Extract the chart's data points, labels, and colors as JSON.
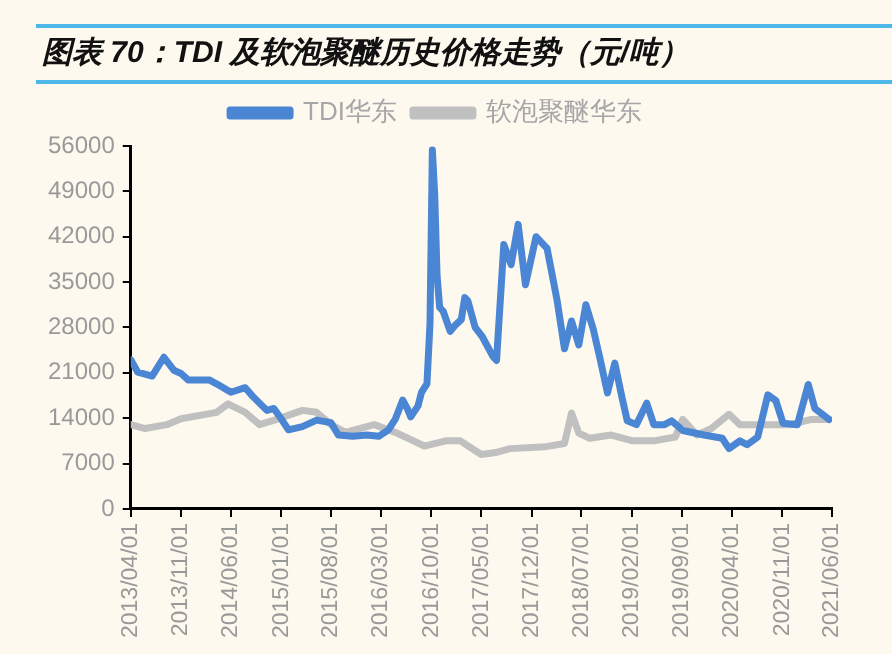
{
  "chart_data": {
    "type": "line",
    "title": "图表 70：TDI 及软泡聚醚历史价格走势（元/吨）",
    "legend": "top",
    "grid": false,
    "marker": "none",
    "line_style": "solid",
    "xlim": [
      "2013-04-01",
      "2021-06-01"
    ],
    "xticks": [
      {
        "value": "2013-04-01",
        "label": "2013/04/01"
      },
      {
        "value": "2013-11-01",
        "label": "2013/11/01"
      },
      {
        "value": "2014-06-01",
        "label": "2014/06/01"
      },
      {
        "value": "2015-01-01",
        "label": "2015/01/01"
      },
      {
        "value": "2015-08-01",
        "label": "2015/08/01"
      },
      {
        "value": "2016-03-01",
        "label": "2016/03/01"
      },
      {
        "value": "2016-10-01",
        "label": "2016/10/01"
      },
      {
        "value": "2017-05-01",
        "label": "2017/05/01"
      },
      {
        "value": "2017-12-01",
        "label": "2017/12/01"
      },
      {
        "value": "2018-07-01",
        "label": "2018/07/01"
      },
      {
        "value": "2019-02-01",
        "label": "2019/02/01"
      },
      {
        "value": "2019-09-01",
        "label": "2019/09/01"
      },
      {
        "value": "2020-04-01",
        "label": "2020/04/01"
      },
      {
        "value": "2020-11-01",
        "label": "2020/11/01"
      },
      {
        "value": "2021-06-01",
        "label": "2021/06/01"
      }
    ],
    "ylim": [
      0,
      56000
    ],
    "yticks": [
      0,
      7000,
      14000,
      21000,
      28000,
      35000,
      42000,
      49000,
      56000
    ],
    "series": [
      {
        "name": "TDI华东",
        "color": "#4a86d4",
        "x": [
          "2013-04-01",
          "2013-05-01",
          "2013-07-01",
          "2013-08-20",
          "2013-10-01",
          "2013-11-01",
          "2013-12-01",
          "2014-03-01",
          "2014-04-01",
          "2014-06-01",
          "2014-08-01",
          "2014-09-01",
          "2014-11-01",
          "2014-12-01",
          "2015-01-01",
          "2015-02-01",
          "2015-04-01",
          "2015-06-01",
          "2015-07-01",
          "2015-08-01",
          "2015-09-01",
          "2015-11-01",
          "2016-01-01",
          "2016-02-20",
          "2016-04-01",
          "2016-05-01",
          "2016-06-01",
          "2016-06-20",
          "2016-07-05",
          "2016-08-05",
          "2016-08-20",
          "2016-09-12",
          "2016-09-25",
          "2016-10-05",
          "2016-10-15",
          "2016-10-25",
          "2016-11-05",
          "2016-11-20",
          "2016-12-20",
          "2017-01-12",
          "2017-02-05",
          "2017-02-20",
          "2017-03-05",
          "2017-04-05",
          "2017-05-05",
          "2017-06-20",
          "2017-07-05",
          "2017-08-05",
          "2017-09-05",
          "2017-10-05",
          "2017-11-05",
          "2017-12-20",
          "2018-02-05",
          "2018-03-20",
          "2018-04-20",
          "2018-05-20",
          "2018-06-20",
          "2018-07-20",
          "2018-08-20",
          "2018-09-20",
          "2018-10-20",
          "2018-11-20",
          "2018-12-20",
          "2019-01-12",
          "2019-02-20",
          "2019-04-05",
          "2019-05-05",
          "2019-06-20",
          "2019-07-20",
          "2019-09-05",
          "2019-12-05",
          "2020-02-20",
          "2020-03-20",
          "2020-05-05",
          "2020-06-05",
          "2020-07-20",
          "2020-09-01",
          "2020-10-05",
          "2020-11-05",
          "2021-01-05",
          "2021-02-20",
          "2021-03-20",
          "2021-05-20"
        ],
        "values": [
          23000,
          21100,
          20500,
          23400,
          21400,
          20900,
          19900,
          19900,
          19300,
          18000,
          18700,
          17400,
          15200,
          15500,
          13900,
          12200,
          12700,
          13700,
          13500,
          13300,
          11400,
          11200,
          11400,
          11200,
          12200,
          13900,
          16800,
          15500,
          14200,
          15900,
          18000,
          19300,
          28600,
          55400,
          48500,
          36000,
          31100,
          30500,
          27400,
          28400,
          29200,
          32600,
          32100,
          28000,
          26600,
          23500,
          22900,
          40800,
          37700,
          43900,
          34600,
          42000,
          40200,
          32100,
          24700,
          29000,
          25300,
          31500,
          27800,
          22900,
          17900,
          22500,
          17300,
          13600,
          13000,
          16300,
          13000,
          13000,
          13600,
          12100,
          11400,
          10900,
          9300,
          10500,
          9900,
          11100,
          17600,
          16700,
          13200,
          13000,
          19200,
          15500,
          13800
        ]
      },
      {
        "name": "软泡聚醚华东",
        "color": "#c0c0c0",
        "x": [
          "2013-04-01",
          "2013-06-01",
          "2013-09-01",
          "2013-11-01",
          "2014-04-01",
          "2014-05-20",
          "2014-08-01",
          "2014-10-01",
          "2014-12-20",
          "2015-04-01",
          "2015-06-01",
          "2015-08-01",
          "2015-10-01",
          "2016-02-01",
          "2016-05-01",
          "2016-09-01",
          "2016-12-01",
          "2017-02-01",
          "2017-05-01",
          "2017-07-01",
          "2017-09-01",
          "2018-02-01",
          "2018-04-20",
          "2018-05-20",
          "2018-06-20",
          "2018-08-05",
          "2018-11-05",
          "2019-02-05",
          "2019-05-05",
          "2019-08-05",
          "2019-09-05",
          "2019-11-05",
          "2020-01-05",
          "2020-03-20",
          "2020-05-05",
          "2020-10-05",
          "2020-12-05",
          "2021-03-05",
          "2021-05-20"
        ],
        "values": [
          13000,
          12400,
          13000,
          13900,
          14900,
          16200,
          14900,
          13000,
          13900,
          15200,
          14900,
          13000,
          11800,
          13000,
          11800,
          9700,
          10500,
          10500,
          8400,
          8700,
          9300,
          9600,
          10100,
          14800,
          11700,
          10900,
          11400,
          10500,
          10500,
          11100,
          13800,
          11400,
          12400,
          14600,
          13000,
          13000,
          13000,
          13800,
          13800
        ]
      }
    ]
  }
}
